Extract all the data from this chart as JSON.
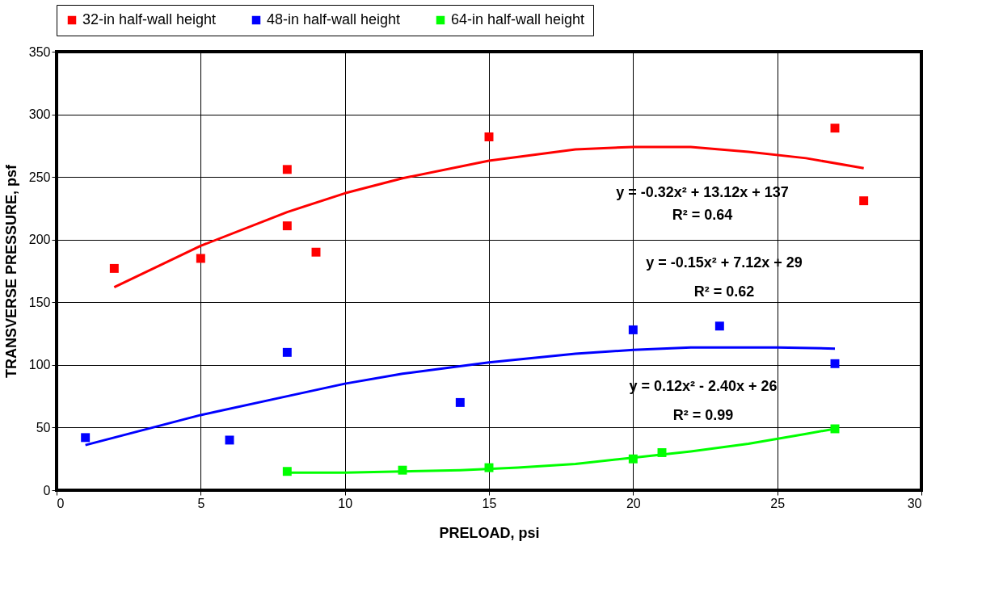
{
  "chart_data": {
    "type": "scatter",
    "xlabel": "PRELOAD, psi",
    "ylabel": "TRANSVERSE PRESSURE, psf",
    "xlim": [
      0,
      30
    ],
    "xticks": [
      0,
      5,
      10,
      15,
      20,
      25,
      30
    ],
    "ylim": [
      0,
      350
    ],
    "yticks": [
      0,
      50,
      100,
      150,
      200,
      250,
      300,
      350
    ],
    "grid": true,
    "legend": "top",
    "marker": "square",
    "series": [
      {
        "name": "32-in half-wall height",
        "color": "#ff0000",
        "x": [
          2,
          5,
          8,
          8,
          9,
          15,
          27,
          28
        ],
        "values": [
          177,
          185,
          256,
          211,
          190,
          282,
          289,
          231
        ]
      },
      {
        "name": "48-in half-wall height",
        "color": "#0000ff",
        "x": [
          1,
          6,
          8,
          14,
          20,
          23,
          27
        ],
        "values": [
          42,
          40,
          110,
          70,
          128,
          131,
          101
        ]
      },
      {
        "name": "64-in half-wall height",
        "color": "#00ff00",
        "x": [
          8,
          12,
          15,
          20,
          21,
          27
        ],
        "values": [
          15,
          16,
          18,
          25,
          30,
          49
        ]
      },
      {
        "type": "line",
        "color": "#ff0000",
        "line_style": "solid",
        "marker": "none",
        "x": [
          2,
          5,
          8,
          10,
          12,
          15,
          18,
          20,
          22,
          24,
          26,
          28
        ],
        "values": [
          162,
          195,
          222,
          237,
          249,
          263,
          272,
          274,
          274,
          270,
          265,
          257
        ]
      },
      {
        "type": "line",
        "color": "#0000ff",
        "line_style": "solid",
        "marker": "none",
        "x": [
          1,
          5,
          8,
          10,
          12,
          15,
          18,
          20,
          22,
          25,
          27
        ],
        "values": [
          36,
          60,
          75,
          85,
          93,
          102,
          109,
          112,
          114,
          114,
          113
        ]
      },
      {
        "type": "line",
        "color": "#00ff00",
        "line_style": "solid",
        "marker": "none",
        "x": [
          8,
          10,
          12,
          14,
          16,
          18,
          20,
          22,
          24,
          26,
          27
        ],
        "values": [
          14,
          14,
          15,
          16,
          18,
          21,
          26,
          31,
          37,
          45,
          49
        ]
      }
    ],
    "annotations": [
      "y = -0.32x² + 13.12x + 137",
      "R² = 0.64",
      "y = -0.15x² + 7.12x + 29",
      "R² = 0.62",
      "y = 0.12x² - 2.40x + 26",
      "R² = 0.99"
    ]
  }
}
